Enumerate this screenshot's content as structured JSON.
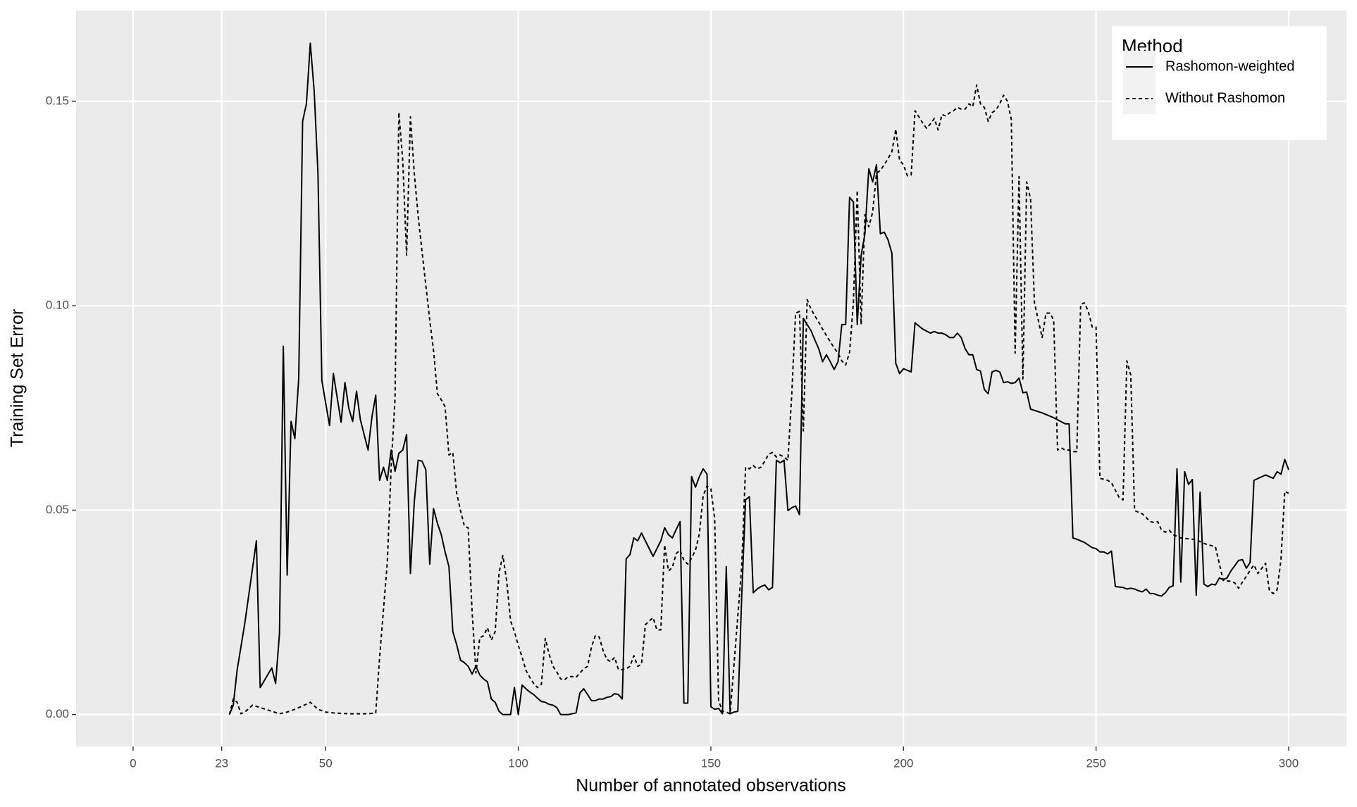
{
  "chart_data": {
    "type": "line",
    "x_label": "Number of annotated observations",
    "y_label": "Training Set Error",
    "xlim": [
      -14.8,
      315
    ],
    "ylim": [
      -0.0078,
      0.1722
    ],
    "xticks": [
      0,
      23,
      50,
      100,
      150,
      200,
      250,
      300
    ],
    "yticks": [
      {
        "value": 0,
        "label": "0.00"
      },
      {
        "value": 0.05,
        "label": "0.05"
      },
      {
        "value": 0.1,
        "label": "0.10"
      },
      {
        "value": 0.15,
        "label": "0.15"
      }
    ],
    "grid": true,
    "legend_position": "top-right",
    "legend_title": "Method",
    "series": [
      {
        "name": "Rashomon-weighted",
        "color": "#000000",
        "linetype": "solid",
        "x": [
          25,
          26,
          27,
          29,
          32,
          33,
          36,
          37,
          38,
          39,
          40,
          41,
          42,
          43,
          44,
          45,
          46,
          47,
          48,
          49,
          51,
          52,
          53,
          54,
          55,
          56,
          57,
          58,
          59,
          61,
          62,
          63,
          64,
          65,
          66,
          67,
          68,
          69,
          70,
          71,
          72,
          73,
          74,
          75,
          76,
          77,
          78,
          79,
          80,
          81,
          82,
          83,
          84,
          85,
          86,
          87,
          88,
          89,
          90,
          91,
          92,
          93,
          94,
          95,
          96,
          98,
          99,
          100,
          101,
          102,
          103,
          104,
          105,
          106,
          107,
          108,
          109,
          110,
          111,
          113,
          115,
          116,
          117,
          118,
          119,
          120,
          121,
          122,
          123,
          124,
          125,
          126,
          127,
          128,
          129,
          130,
          131,
          132,
          133,
          135,
          137,
          138,
          139,
          140,
          141,
          142,
          143,
          144,
          145,
          146,
          147,
          148,
          149,
          150,
          151,
          152,
          153,
          154,
          155,
          156,
          157,
          158,
          159,
          160,
          161,
          162,
          163,
          164,
          165,
          166,
          167,
          168,
          169,
          170,
          171,
          172,
          173,
          174,
          175,
          176,
          177,
          178,
          179,
          180,
          181,
          182,
          183,
          184,
          185,
          186,
          187,
          188,
          189,
          190,
          191,
          192,
          193,
          194,
          195,
          196,
          197,
          198,
          199,
          200,
          202,
          203,
          205,
          207,
          208,
          209,
          210,
          211,
          212,
          213,
          214,
          215,
          216,
          217,
          218,
          219,
          220,
          221,
          222,
          223,
          224,
          225,
          226,
          227,
          228,
          229,
          230,
          231,
          232,
          233,
          236,
          239,
          240,
          242,
          243,
          244,
          245,
          247,
          249,
          250,
          251,
          252,
          253,
          254,
          255,
          257,
          258,
          259,
          260,
          261,
          262,
          263,
          264,
          265,
          266,
          267,
          268,
          269,
          270,
          271,
          272,
          273,
          274,
          275,
          276,
          277,
          278,
          279,
          280,
          281,
          282,
          283,
          284,
          285,
          286,
          287,
          288,
          289,
          290,
          291,
          294,
          296,
          297,
          298,
          299,
          300
        ],
        "values": [
          0,
          0.0023,
          0.0108,
          0.0224,
          0.0425,
          0.0066,
          0.0114,
          0.0076,
          0.0199,
          0.0901,
          0.0341,
          0.0717,
          0.0675,
          0.0823,
          0.1451,
          0.1494,
          0.1642,
          0.1526,
          0.1324,
          0.0817,
          0.0707,
          0.0834,
          0.0774,
          0.0715,
          0.0812,
          0.0749,
          0.0717,
          0.0791,
          0.0721,
          0.0647,
          0.0728,
          0.0781,
          0.0573,
          0.0605,
          0.0573,
          0.0647,
          0.0595,
          0.0639,
          0.0647,
          0.0685,
          0.0345,
          0.052,
          0.0622,
          0.062,
          0.0599,
          0.0368,
          0.0504,
          0.0468,
          0.044,
          0.0398,
          0.0362,
          0.0203,
          0.0171,
          0.0133,
          0.0127,
          0.0118,
          0.0099,
          0.0118,
          0.0097,
          0.0087,
          0.008,
          0.0038,
          0.003,
          0.0008,
          0,
          0,
          0.0066,
          0,
          0.0072,
          0.0063,
          0.0055,
          0.0049,
          0.004,
          0.0032,
          0.003,
          0.0025,
          0.0023,
          0.0017,
          0,
          0,
          0.0004,
          0.0053,
          0.0063,
          0.0049,
          0.0034,
          0.0034,
          0.0038,
          0.0038,
          0.0042,
          0.0044,
          0.0051,
          0.0049,
          0.0038,
          0.0381,
          0.0391,
          0.0432,
          0.0425,
          0.0444,
          0.0425,
          0.0387,
          0.0425,
          0.0457,
          0.044,
          0.0432,
          0.0453,
          0.0472,
          0.0028,
          0.0028,
          0.0582,
          0.0556,
          0.0582,
          0.0601,
          0.0588,
          0.0019,
          0.0013,
          0.0015,
          0.0002,
          0.0362,
          0.0002,
          0.0006,
          0.0008,
          0.0288,
          0.0525,
          0.0533,
          0.0298,
          0.0307,
          0.0313,
          0.0317,
          0.0305,
          0.0311,
          0.0622,
          0.0616,
          0.0622,
          0.0499,
          0.0506,
          0.051,
          0.0489,
          0.0969,
          0.0954,
          0.0939,
          0.0916,
          0.0895,
          0.0863,
          0.088,
          0.0863,
          0.0844,
          0.0863,
          0.0954,
          0.0954,
          0.1265,
          0.1254,
          0.0954,
          0.1123,
          0.1176,
          0.1335,
          0.1303,
          0.1345,
          0.1176,
          0.118,
          0.1161,
          0.1128,
          0.0859,
          0.0834,
          0.0846,
          0.0838,
          0.0958,
          0.0943,
          0.0933,
          0.0937,
          0.0933,
          0.0933,
          0.0929,
          0.0922,
          0.0922,
          0.0933,
          0.0922,
          0.0895,
          0.088,
          0.088,
          0.0844,
          0.084,
          0.0795,
          0.0785,
          0.0838,
          0.0842,
          0.0838,
          0.0812,
          0.0814,
          0.081,
          0.0812,
          0.0823,
          0.0787,
          0.0789,
          0.0747,
          0.0738,
          0.0726,
          0.0721,
          0.0711,
          0.0711,
          0.0432,
          0.0429,
          0.0421,
          0.0408,
          0.0406,
          0.0398,
          0.0398,
          0.0393,
          0.04,
          0.0313,
          0.0311,
          0.0307,
          0.0309,
          0.0307,
          0.0303,
          0.03,
          0.0307,
          0.0296,
          0.0296,
          0.0292,
          0.029,
          0.0298,
          0.0311,
          0.0315,
          0.0601,
          0.0324,
          0.0594,
          0.0563,
          0.0575,
          0.0292,
          0.0544,
          0.0319,
          0.0313,
          0.0319,
          0.0317,
          0.0334,
          0.033,
          0.0334,
          0.0351,
          0.0364,
          0.0377,
          0.0379,
          0.0358,
          0.0372,
          0.0573,
          0.0586,
          0.0578,
          0.0594,
          0.0588,
          0.0624,
          0.0599
        ]
      },
      {
        "name": "Without Rashomon",
        "color": "#000000",
        "linetype": "dashed",
        "x": [
          25,
          26,
          27,
          28,
          29,
          31,
          33,
          35,
          38,
          40,
          42,
          44,
          46,
          48,
          50,
          52,
          56,
          59,
          61,
          63,
          64,
          66,
          67,
          68,
          69,
          70,
          71,
          72,
          73,
          74,
          75,
          76,
          77,
          78,
          79,
          80,
          81,
          82,
          83,
          84,
          85,
          86,
          87,
          88,
          89,
          90,
          91,
          92,
          93,
          94,
          95,
          96,
          97,
          98,
          99,
          100,
          101,
          102,
          103,
          104,
          105,
          106,
          107,
          108,
          109,
          110,
          111,
          112,
          113,
          114,
          115,
          116,
          117,
          118,
          119,
          120,
          121,
          122,
          123,
          124,
          125,
          126,
          127,
          128,
          129,
          130,
          131,
          132,
          133,
          134,
          135,
          136,
          137,
          138,
          139,
          140,
          141,
          142,
          143,
          144,
          145,
          146,
          147,
          148,
          149,
          150,
          151,
          152,
          153,
          154,
          155,
          158,
          159,
          160,
          161,
          162,
          163,
          164,
          165,
          166,
          167,
          168,
          169,
          170,
          171,
          172,
          173,
          174,
          175,
          176,
          177,
          178,
          179,
          180,
          181,
          182,
          183,
          184,
          185,
          186,
          187,
          188,
          189,
          190,
          191,
          192,
          193,
          194,
          195,
          196,
          197,
          198,
          199,
          200,
          201,
          202,
          203,
          204,
          205,
          206,
          207,
          208,
          209,
          210,
          211,
          212,
          213,
          214,
          215,
          216,
          217,
          218,
          219,
          220,
          221,
          222,
          223,
          224,
          225,
          226,
          227,
          228,
          229,
          230,
          231,
          232,
          233,
          234,
          235,
          236,
          237,
          238,
          239,
          240,
          241,
          242,
          243,
          244,
          245,
          246,
          247,
          248,
          249,
          250,
          251,
          253,
          254,
          256,
          257,
          258,
          259,
          260,
          262,
          263,
          264,
          265,
          266,
          267,
          268,
          269,
          270,
          271,
          272,
          275,
          276,
          277,
          278,
          279,
          280,
          281,
          283,
          285,
          286,
          287,
          288,
          289,
          290,
          291,
          292,
          294,
          295,
          296,
          297,
          298,
          299,
          300
        ],
        "values": [
          0,
          0.0038,
          0.003,
          0.0002,
          0.0006,
          0.0023,
          0.0017,
          0.0011,
          0.0002,
          0.0006,
          0.0013,
          0.0021,
          0.003,
          0.0013,
          0.0006,
          0.0004,
          0.0002,
          0.0002,
          0.0002,
          0.0004,
          0.014,
          0.0372,
          0.0605,
          0.0774,
          0.1473,
          0.1356,
          0.1124,
          0.1462,
          0.1324,
          0.1219,
          0.1134,
          0.105,
          0.0965,
          0.0891,
          0.0785,
          0.077,
          0.0753,
          0.0635,
          0.0641,
          0.0542,
          0.0499,
          0.0461,
          0.0457,
          0.0254,
          0.0102,
          0.0188,
          0.0193,
          0.0212,
          0.0182,
          0.0203,
          0.0347,
          0.0389,
          0.0326,
          0.0229,
          0.0203,
          0.0169,
          0.014,
          0.0108,
          0.0091,
          0.0076,
          0.0066,
          0.0074,
          0.0186,
          0.0148,
          0.0118,
          0.0104,
          0.0087,
          0.0085,
          0.0093,
          0.0093,
          0.0091,
          0.0102,
          0.0112,
          0.0118,
          0.0165,
          0.0193,
          0.019,
          0.0157,
          0.0135,
          0.0129,
          0.014,
          0.011,
          0.011,
          0.0112,
          0.0118,
          0.0144,
          0.0118,
          0.0123,
          0.022,
          0.0229,
          0.0237,
          0.0207,
          0.0207,
          0.0415,
          0.0351,
          0.036,
          0.0394,
          0.0402,
          0.0377,
          0.0368,
          0.0383,
          0.0402,
          0.0442,
          0.0535,
          0.0559,
          0.0552,
          0.0478,
          0.0034,
          0.0008,
          0.0006,
          0.0002,
          0.0362,
          0.0605,
          0.0601,
          0.0609,
          0.0601,
          0.0605,
          0.062,
          0.0637,
          0.0641,
          0.063,
          0.0635,
          0.063,
          0.0622,
          0.0785,
          0.0982,
          0.0986,
          0.0694,
          0.1015,
          0.0992,
          0.0975,
          0.096,
          0.0943,
          0.0927,
          0.0912,
          0.0897,
          0.0884,
          0.0865,
          0.0855,
          0.0886,
          0.1007,
          0.1282,
          0.0954,
          0.1223,
          0.1193,
          0.1229,
          0.1324,
          0.1331,
          0.1345,
          0.136,
          0.1377,
          0.1432,
          0.1356,
          0.1345,
          0.1318,
          0.132,
          0.1477,
          0.1462,
          0.1447,
          0.1434,
          0.1445,
          0.1458,
          0.143,
          0.1468,
          0.1464,
          0.1472,
          0.1477,
          0.1485,
          0.1481,
          0.1481,
          0.1494,
          0.1487,
          0.154,
          0.1494,
          0.1485,
          0.1451,
          0.1472,
          0.1479,
          0.1494,
          0.1515,
          0.15,
          0.1455,
          0.0884,
          0.1316,
          0.0821,
          0.1303,
          0.1261,
          0.1007,
          0.0965,
          0.0922,
          0.0982,
          0.0982,
          0.0965,
          0.0647,
          0.0652,
          0.0647,
          0.0647,
          0.0643,
          0.0643,
          0.1003,
          0.1007,
          0.0986,
          0.0948,
          0.0948,
          0.0578,
          0.0573,
          0.0567,
          0.0531,
          0.0525,
          0.0865,
          0.083,
          0.0499,
          0.0491,
          0.0482,
          0.0472,
          0.047,
          0.0472,
          0.0451,
          0.0446,
          0.0451,
          0.044,
          0.0436,
          0.0432,
          0.0429,
          0.0427,
          0.0423,
          0.0419,
          0.0415,
          0.0413,
          0.041,
          0.0328,
          0.0326,
          0.0322,
          0.0309,
          0.0324,
          0.0338,
          0.0353,
          0.0366,
          0.0345,
          0.037,
          0.0303,
          0.0296,
          0.0305,
          0.0379,
          0.0546,
          0.0541
        ]
      }
    ]
  }
}
